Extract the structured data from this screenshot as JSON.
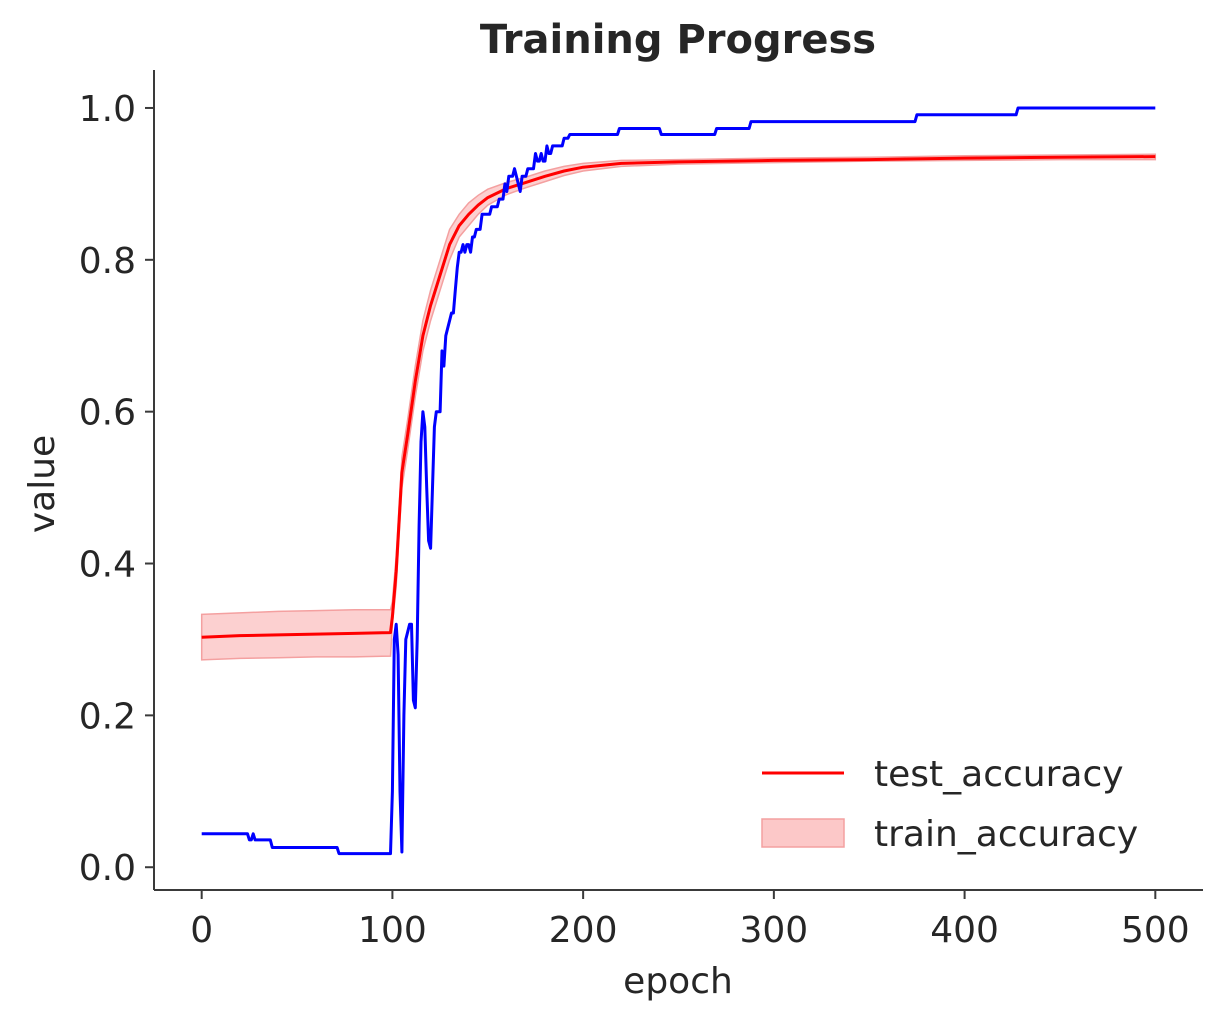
{
  "chart_data": {
    "type": "line",
    "title": "Training Progress",
    "xlabel": "epoch",
    "ylabel": "value",
    "xlim": [
      -25,
      525
    ],
    "ylim": [
      -0.03,
      1.05
    ],
    "xticks": [
      0,
      100,
      200,
      300,
      400,
      500
    ],
    "yticks": [
      0.0,
      0.2,
      0.4,
      0.6,
      0.8,
      1.0
    ],
    "xtick_labels": [
      "0",
      "100",
      "200",
      "300",
      "400",
      "500"
    ],
    "ytick_labels": [
      "0.0",
      "0.2",
      "0.4",
      "0.6",
      "0.8",
      "1.0"
    ],
    "grid": false,
    "legend_position": "lower-right",
    "series": [
      {
        "name": "test_accuracy",
        "kind": "line",
        "color": "#ff0000",
        "x": [
          0,
          20,
          40,
          60,
          80,
          99,
          100,
          102,
          105,
          108,
          112,
          116,
          120,
          125,
          130,
          135,
          140,
          145,
          150,
          160,
          170,
          180,
          190,
          200,
          220,
          250,
          300,
          350,
          400,
          450,
          500
        ],
        "y": [
          0.303,
          0.305,
          0.306,
          0.307,
          0.308,
          0.309,
          0.33,
          0.39,
          0.52,
          0.57,
          0.64,
          0.7,
          0.74,
          0.78,
          0.82,
          0.845,
          0.86,
          0.872,
          0.882,
          0.894,
          0.902,
          0.91,
          0.917,
          0.922,
          0.927,
          0.929,
          0.931,
          0.932,
          0.934,
          0.935,
          0.936
        ]
      },
      {
        "name": "train_accuracy",
        "kind": "band",
        "color": "#ff0000",
        "fill": "#fcc8c8",
        "x": [
          0,
          20,
          40,
          60,
          80,
          99,
          100,
          102,
          105,
          108,
          112,
          116,
          120,
          125,
          130,
          135,
          140,
          145,
          150,
          160,
          170,
          180,
          190,
          200,
          220,
          250,
          300,
          350,
          400,
          450,
          500
        ],
        "lower": [
          0.273,
          0.275,
          0.276,
          0.277,
          0.277,
          0.278,
          0.32,
          0.37,
          0.5,
          0.55,
          0.62,
          0.68,
          0.72,
          0.76,
          0.8,
          0.83,
          0.845,
          0.86,
          0.872,
          0.886,
          0.895,
          0.903,
          0.911,
          0.917,
          0.923,
          0.926,
          0.928,
          0.93,
          0.931,
          0.932,
          0.932
        ],
        "upper": [
          0.333,
          0.335,
          0.337,
          0.338,
          0.339,
          0.339,
          0.35,
          0.41,
          0.54,
          0.59,
          0.66,
          0.72,
          0.76,
          0.8,
          0.84,
          0.86,
          0.875,
          0.885,
          0.893,
          0.902,
          0.909,
          0.917,
          0.923,
          0.927,
          0.931,
          0.932,
          0.934,
          0.935,
          0.937,
          0.938,
          0.939
        ]
      },
      {
        "kind": "line",
        "color": "#0000ff",
        "x": [
          0,
          24,
          25,
          26,
          27,
          28,
          29,
          30,
          36,
          37,
          71,
          72,
          99,
          100,
          101,
          102,
          103,
          104,
          105,
          106,
          107,
          108,
          109,
          110,
          111,
          112,
          113,
          114,
          115,
          116,
          117,
          118,
          119,
          120,
          121,
          122,
          123,
          124,
          125,
          126,
          127,
          128,
          129,
          130,
          131,
          132,
          133,
          134,
          135,
          136,
          137,
          138,
          139,
          140,
          141,
          142,
          143,
          144,
          145,
          146,
          147,
          148,
          149,
          150,
          151,
          152,
          153,
          154,
          155,
          156,
          157,
          158,
          159,
          160,
          161,
          162,
          163,
          164,
          165,
          166,
          167,
          168,
          169,
          170,
          171,
          172,
          173,
          174,
          175,
          176,
          177,
          178,
          179,
          180,
          181,
          182,
          183,
          184,
          185,
          186,
          187,
          188,
          189,
          190,
          191,
          192,
          193,
          194,
          195,
          196,
          197,
          198,
          199,
          200,
          218,
          219,
          240,
          241,
          269,
          270,
          287,
          288,
          374,
          375,
          427,
          428,
          500
        ],
        "y": [
          0.044,
          0.044,
          0.036,
          0.036,
          0.044,
          0.036,
          0.036,
          0.036,
          0.036,
          0.026,
          0.026,
          0.018,
          0.018,
          0.1,
          0.3,
          0.32,
          0.28,
          0.1,
          0.02,
          0.2,
          0.3,
          0.31,
          0.32,
          0.32,
          0.22,
          0.21,
          0.3,
          0.45,
          0.56,
          0.6,
          0.58,
          0.5,
          0.43,
          0.42,
          0.5,
          0.58,
          0.6,
          0.6,
          0.6,
          0.68,
          0.66,
          0.7,
          0.71,
          0.72,
          0.73,
          0.73,
          0.76,
          0.79,
          0.81,
          0.81,
          0.82,
          0.81,
          0.82,
          0.82,
          0.81,
          0.83,
          0.83,
          0.84,
          0.84,
          0.84,
          0.86,
          0.86,
          0.86,
          0.86,
          0.86,
          0.87,
          0.87,
          0.87,
          0.87,
          0.88,
          0.88,
          0.88,
          0.9,
          0.89,
          0.91,
          0.91,
          0.91,
          0.92,
          0.91,
          0.9,
          0.89,
          0.91,
          0.91,
          0.91,
          0.92,
          0.92,
          0.92,
          0.92,
          0.94,
          0.93,
          0.93,
          0.94,
          0.93,
          0.93,
          0.95,
          0.94,
          0.94,
          0.95,
          0.95,
          0.95,
          0.95,
          0.95,
          0.95,
          0.96,
          0.96,
          0.96,
          0.965,
          0.965,
          0.965,
          0.965,
          0.965,
          0.965,
          0.965,
          0.965,
          0.965,
          0.973,
          0.973,
          0.965,
          0.965,
          0.973,
          0.973,
          0.982,
          0.982,
          0.991,
          0.991,
          1.0,
          1.0
        ]
      }
    ],
    "legend": [
      {
        "label": "test_accuracy",
        "swatch": "line",
        "color": "#ff0000"
      },
      {
        "label": "train_accuracy",
        "swatch": "patch",
        "color": "#fcc8c8",
        "edge": "#f4a0a0"
      }
    ]
  }
}
